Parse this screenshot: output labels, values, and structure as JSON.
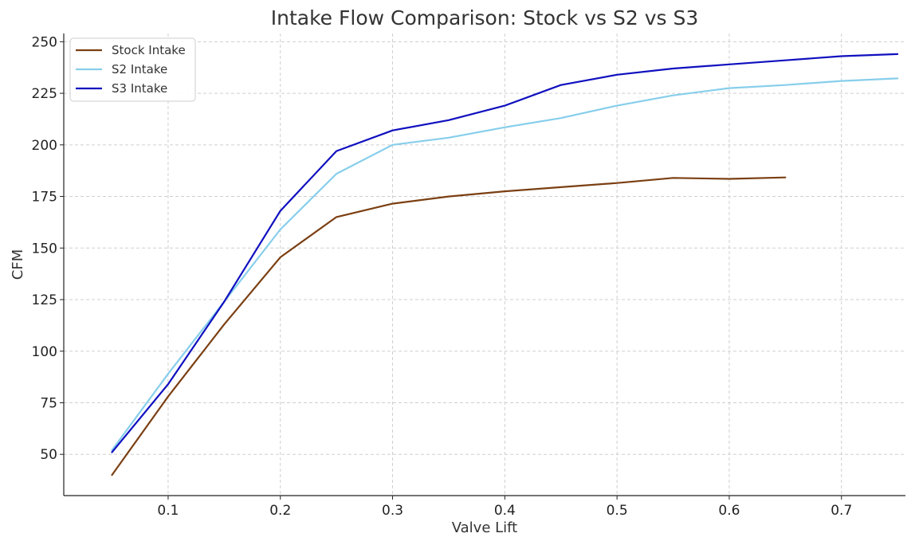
{
  "chart_data": {
    "type": "line",
    "title": "Intake Flow Comparison: Stock vs S2 vs S3",
    "xlabel": "Valve Lift",
    "ylabel": "CFM",
    "xlim": [
      0.007,
      0.757
    ],
    "ylim": [
      30,
      254
    ],
    "xticks": [
      0.1,
      0.2,
      0.3,
      0.4,
      0.5,
      0.6,
      0.7
    ],
    "yticks": [
      50,
      75,
      100,
      125,
      150,
      175,
      200,
      225,
      250
    ],
    "grid": true,
    "legend_position": "top-left",
    "series": [
      {
        "name": "Stock Intake",
        "color": "#7b3f12",
        "x": [
          0.05,
          0.1,
          0.15,
          0.2,
          0.25,
          0.3,
          0.35,
          0.4,
          0.45,
          0.5,
          0.55,
          0.6,
          0.65
        ],
        "y": [
          40,
          78,
          113,
          145.5,
          165,
          171.5,
          175,
          177.5,
          179.5,
          181.5,
          184,
          183.5,
          184.2
        ]
      },
      {
        "name": "S2 Intake",
        "color": "#87ceeb",
        "x": [
          0.05,
          0.1,
          0.15,
          0.2,
          0.25,
          0.3,
          0.35,
          0.4,
          0.45,
          0.5,
          0.55,
          0.6,
          0.65,
          0.7,
          0.75
        ],
        "y": [
          52,
          89,
          124,
          159,
          186,
          200,
          203.5,
          208.5,
          213,
          219,
          224,
          227.5,
          229,
          231,
          232.2
        ]
      },
      {
        "name": "S3 Intake",
        "color": "#0f0fbf",
        "x": [
          0.05,
          0.1,
          0.15,
          0.2,
          0.25,
          0.3,
          0.35,
          0.4,
          0.45,
          0.5,
          0.55,
          0.6,
          0.65,
          0.7,
          0.75
        ],
        "y": [
          51,
          84,
          124,
          168,
          197,
          207,
          212,
          219,
          229,
          234,
          237,
          239,
          241,
          243,
          244
        ]
      }
    ]
  }
}
